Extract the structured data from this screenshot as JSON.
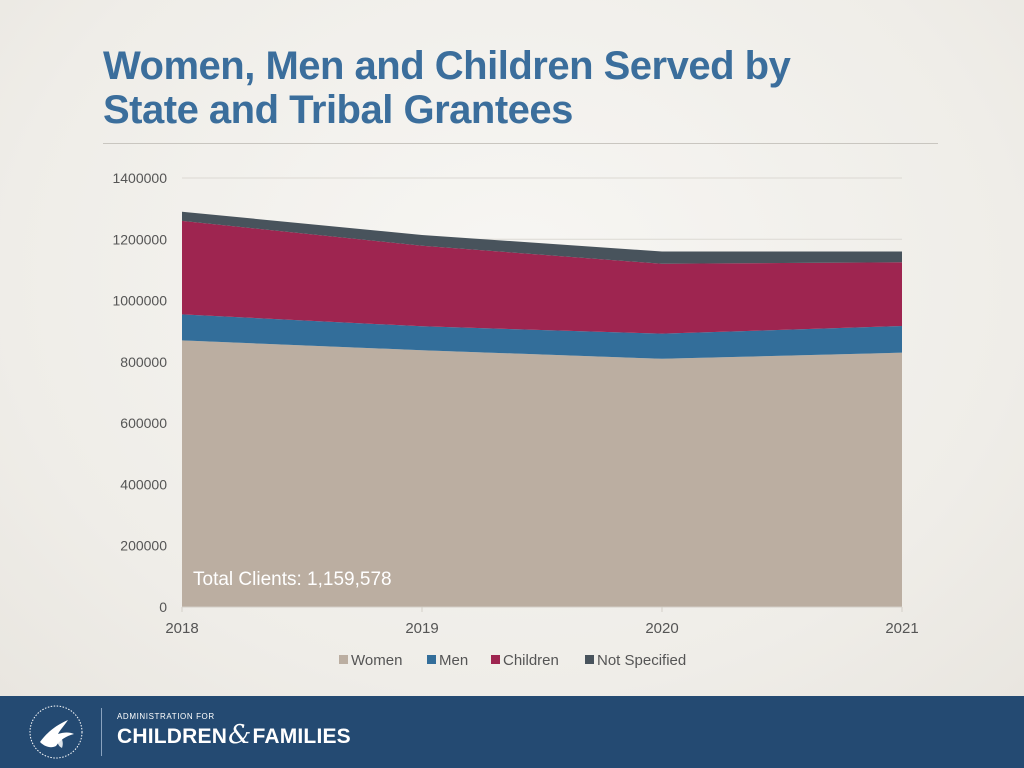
{
  "slide": {
    "title_line1": "Women, Men and Children Served by",
    "title_line2": "State and Tribal Grantees"
  },
  "colors": {
    "Women": "#bbaea1",
    "Men": "#336e9a",
    "Children": "#9e2550",
    "Not Specified": "#48535c",
    "title": "#3b6e9c",
    "footer": "#244a72"
  },
  "chart_data": {
    "type": "area",
    "stacked": true,
    "x": [
      "2018",
      "2019",
      "2020",
      "2021"
    ],
    "series": [
      {
        "name": "Women",
        "values": [
          870000,
          838000,
          810000,
          830000
        ]
      },
      {
        "name": "Men",
        "values": [
          85000,
          78000,
          82000,
          87000
        ]
      },
      {
        "name": "Children",
        "values": [
          305000,
          263000,
          228000,
          208000
        ]
      },
      {
        "name": "Not Specified",
        "values": [
          30000,
          35000,
          40000,
          35000
        ]
      }
    ],
    "ylim": [
      0,
      1400000
    ],
    "yticks": [
      "0",
      "200000",
      "400000",
      "600000",
      "800000",
      "1000000",
      "1200000",
      "1400000"
    ],
    "grid": true,
    "legend": "bottom",
    "annotation": "Total Clients: 1,159,578"
  },
  "footer": {
    "agency_small": "ADMINISTRATION FOR",
    "agency_word1": "CHILDREN",
    "agency_amp": "&",
    "agency_word2": "FAMILIES",
    "seal_icon": "hhs-eagle-seal-icon"
  }
}
